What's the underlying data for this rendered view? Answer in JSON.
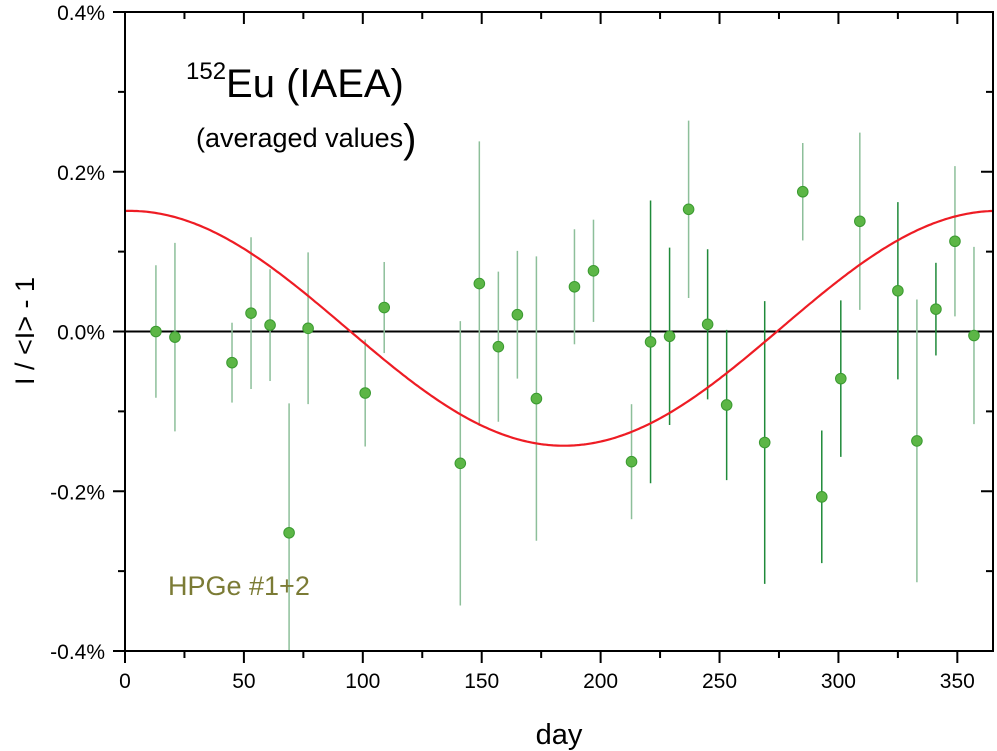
{
  "chart_data": {
    "type": "scatter",
    "title_superscript": "152",
    "title_main": "Eu (IAEA)",
    "subtitle": "(averaged values",
    "subtitle_close": ")",
    "annotation": "HPGe #1+2",
    "xlabel": "day",
    "ylabel": "I / <I> - 1",
    "xlim": [
      0,
      365
    ],
    "ylim": [
      -0.4,
      0.4
    ],
    "y_unit": "%",
    "xticks": [
      "0",
      "50",
      "100",
      "150",
      "200",
      "250",
      "300",
      "350"
    ],
    "yticks": [
      "-0.4%",
      "-0.2%",
      "0.0%",
      "0.2%",
      "0.4%"
    ],
    "grid": false,
    "colors": {
      "points": "#5cb646",
      "point_edge": "#3a9a30",
      "errorbar_light": "#8dbf9a",
      "errorbar_dark": "#1f8a3a",
      "fit_curve": "#ee1c24",
      "zero_line": "#000000",
      "annotation": "#7b7b35"
    },
    "series": [
      {
        "points": [
          {
            "x": 13,
            "y": 0.0,
            "err": 0.083,
            "dark": false
          },
          {
            "x": 21,
            "y": -0.007,
            "err": 0.118,
            "dark": false
          },
          {
            "x": 45,
            "y": -0.039,
            "err": 0.05,
            "dark": false
          },
          {
            "x": 53,
            "y": 0.023,
            "err": 0.095,
            "dark": false
          },
          {
            "x": 61,
            "y": 0.008,
            "err": 0.07,
            "dark": false
          },
          {
            "x": 69,
            "y": -0.252,
            "err": 0.162,
            "dark": false
          },
          {
            "x": 77,
            "y": 0.004,
            "err": 0.095,
            "dark": false
          },
          {
            "x": 101,
            "y": -0.077,
            "err": 0.067,
            "dark": false
          },
          {
            "x": 109,
            "y": 0.03,
            "err": 0.057,
            "dark": false
          },
          {
            "x": 141,
            "y": -0.165,
            "err": 0.178,
            "dark": false
          },
          {
            "x": 149,
            "y": 0.06,
            "err": 0.178,
            "dark": false
          },
          {
            "x": 157,
            "y": -0.019,
            "err": 0.094,
            "dark": false
          },
          {
            "x": 165,
            "y": 0.021,
            "err": 0.08,
            "dark": false
          },
          {
            "x": 173,
            "y": -0.084,
            "err": 0.178,
            "dark": false
          },
          {
            "x": 189,
            "y": 0.056,
            "err": 0.072,
            "dark": false
          },
          {
            "x": 197,
            "y": 0.076,
            "err": 0.064,
            "dark": false
          },
          {
            "x": 213,
            "y": -0.163,
            "err": 0.072,
            "dark": false
          },
          {
            "x": 221,
            "y": -0.013,
            "err": 0.177,
            "dark": true
          },
          {
            "x": 229,
            "y": -0.006,
            "err": 0.111,
            "dark": true
          },
          {
            "x": 237,
            "y": 0.153,
            "err": 0.111,
            "dark": false
          },
          {
            "x": 245,
            "y": 0.009,
            "err": 0.094,
            "dark": true
          },
          {
            "x": 253,
            "y": -0.092,
            "err": 0.094,
            "dark": true
          },
          {
            "x": 269,
            "y": -0.139,
            "err": 0.177,
            "dark": true
          },
          {
            "x": 285,
            "y": 0.175,
            "err": 0.061,
            "dark": false
          },
          {
            "x": 293,
            "y": -0.207,
            "err": 0.083,
            "dark": true
          },
          {
            "x": 301,
            "y": -0.059,
            "err": 0.098,
            "dark": true
          },
          {
            "x": 309,
            "y": 0.138,
            "err": 0.111,
            "dark": false
          },
          {
            "x": 325,
            "y": 0.051,
            "err": 0.111,
            "dark": true
          },
          {
            "x": 333,
            "y": -0.137,
            "err": 0.177,
            "dark": false
          },
          {
            "x": 341,
            "y": 0.028,
            "err": 0.058,
            "dark": true
          },
          {
            "x": 349,
            "y": 0.113,
            "err": 0.094,
            "dark": false
          },
          {
            "x": 357,
            "y": -0.005,
            "err": 0.111,
            "dark": false
          }
        ]
      }
    ],
    "fit": {
      "type": "cosine",
      "period_days": 365,
      "amplitude": 0.147,
      "offset": 0.004,
      "phase_day": 2
    }
  }
}
